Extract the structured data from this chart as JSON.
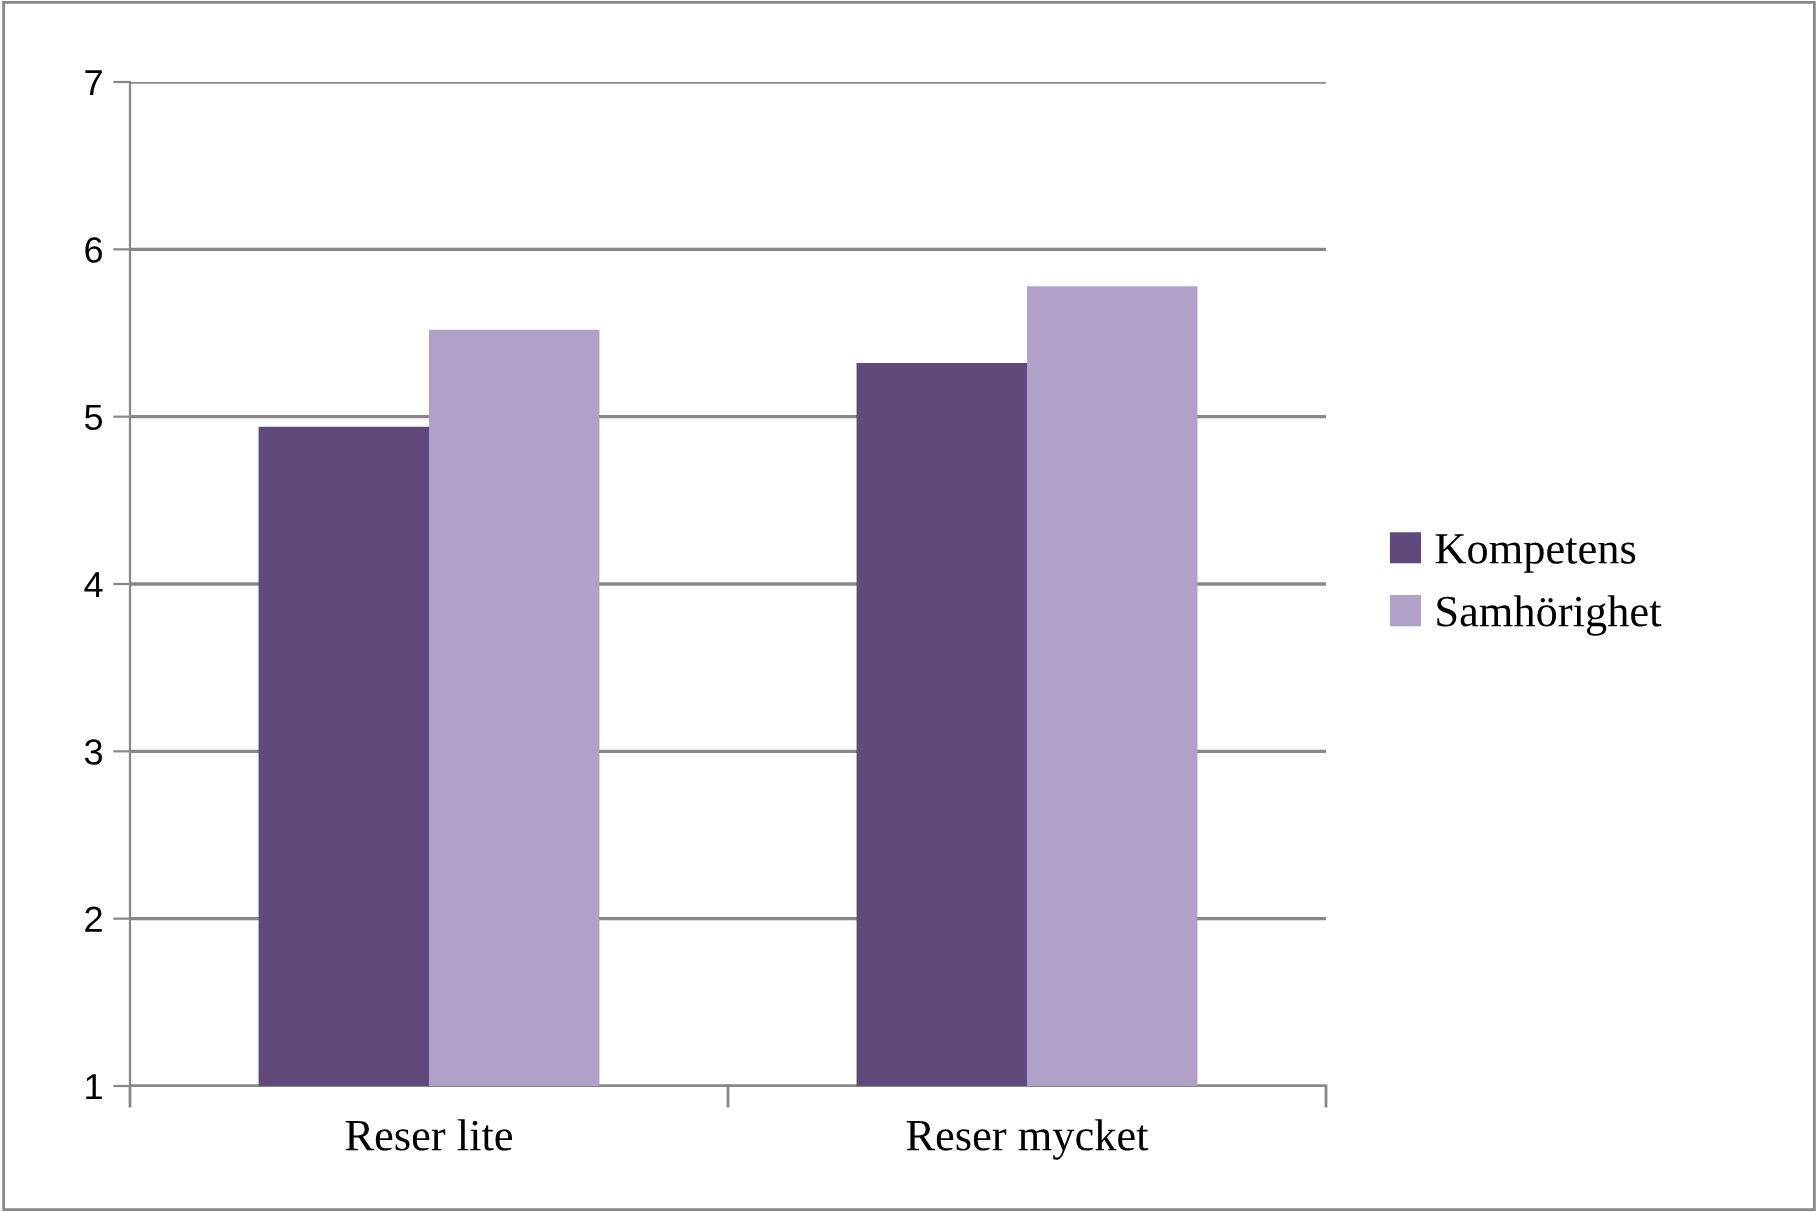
{
  "chart_data": {
    "type": "bar",
    "categories": [
      "Reser lite",
      "Reser mycket"
    ],
    "series": [
      {
        "name": "Kompetens",
        "color": "#604a7b",
        "values": [
          4.94,
          5.32
        ]
      },
      {
        "name": "Samhörighet",
        "color": "#b1a0c7",
        "values": [
          5.52,
          5.78
        ]
      }
    ],
    "ylim": [
      1,
      7
    ],
    "yticks": [
      1,
      2,
      3,
      4,
      5,
      6,
      7
    ],
    "grid": "y",
    "legend": "right"
  }
}
